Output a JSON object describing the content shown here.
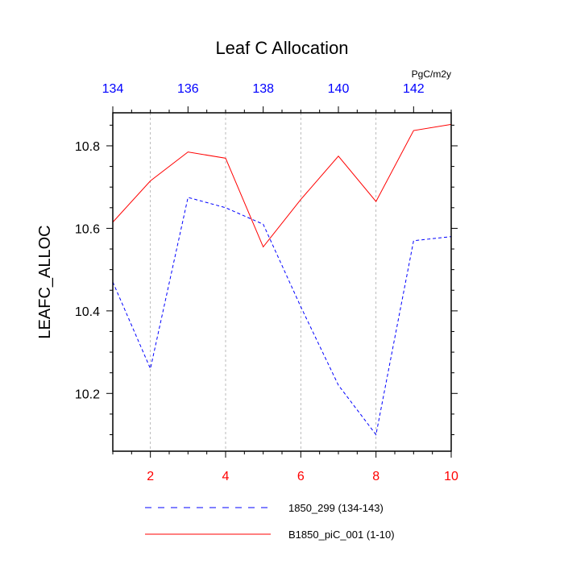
{
  "chart_data": {
    "type": "line",
    "title": "Leaf C Allocation",
    "ylabel": "LEAFC_ALLOC",
    "units": "PgC/m2y",
    "ylim": [
      10.06,
      10.88
    ],
    "y_ticks": [
      10.2,
      10.4,
      10.6,
      10.8
    ],
    "x_bottom": {
      "range": [
        1,
        10
      ],
      "ticks": [
        2,
        4,
        6,
        8,
        10
      ],
      "color": "#ff0000"
    },
    "x_top": {
      "range": [
        134,
        143
      ],
      "ticks": [
        134,
        136,
        138,
        140,
        142
      ],
      "color": "#0000ff"
    },
    "grid": "vertical-dashed",
    "legend_position": "bottom",
    "series": [
      {
        "name": "1850_299 (134-143)",
        "axis": "top",
        "color": "#0000ff",
        "style": "dashed",
        "x": [
          134,
          135,
          136,
          137,
          138,
          139,
          140,
          141,
          142,
          143
        ],
        "values": [
          10.47,
          10.26,
          10.675,
          10.65,
          10.61,
          10.41,
          10.22,
          10.1,
          10.57,
          10.58
        ]
      },
      {
        "name": "B1850_piC_001 (1-10)",
        "axis": "bottom",
        "color": "#ff0000",
        "style": "solid",
        "x": [
          1,
          2,
          3,
          4,
          5,
          6,
          7,
          8,
          9,
          10
        ],
        "values": [
          10.615,
          10.715,
          10.785,
          10.77,
          10.555,
          10.67,
          10.775,
          10.665,
          10.837,
          10.852
        ]
      }
    ]
  }
}
